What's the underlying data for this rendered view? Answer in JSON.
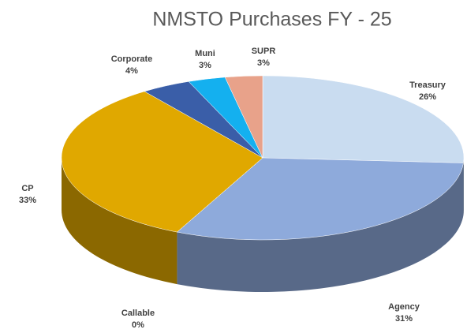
{
  "chart_data": {
    "type": "pie3d",
    "title": "NMSTO Purchases FY - 25",
    "categories": [
      "Treasury",
      "Agency",
      "Callable",
      "CP",
      "Corporate",
      "Muni",
      "SUPR"
    ],
    "values": [
      26,
      31,
      0,
      33,
      4,
      3,
      3
    ],
    "value_labels": [
      "26%",
      "31%",
      "0%",
      "33%",
      "4%",
      "3%",
      "3%"
    ],
    "colors": [
      "#c9dcf0",
      "#8eaadb",
      "#7f7f7f",
      "#e0a800",
      "#3a5ea8",
      "#14b0ef",
      "#e8a28a"
    ]
  }
}
